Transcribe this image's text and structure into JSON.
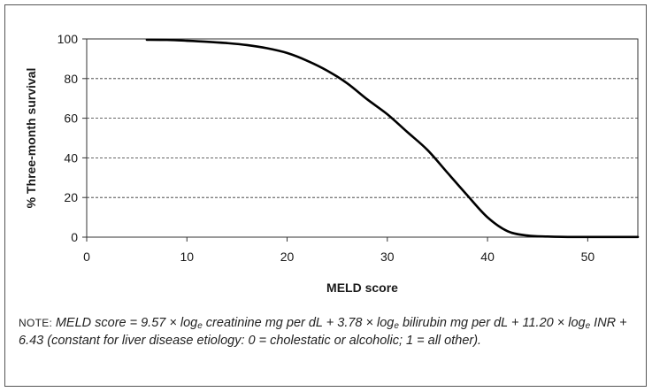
{
  "chart_data": {
    "type": "line",
    "title": "",
    "xlabel": "MELD score",
    "ylabel": "% Three-month survival",
    "xlim": [
      0,
      55
    ],
    "ylim": [
      0,
      100
    ],
    "xticks": [
      0,
      10,
      20,
      30,
      40,
      50
    ],
    "yticks": [
      0,
      20,
      40,
      60,
      80,
      100
    ],
    "grid": "horizontal dashed",
    "legend": "none",
    "line_color": "#000000",
    "series": [
      {
        "x": [
          6,
          8,
          10,
          12,
          14,
          16,
          18,
          20,
          22,
          24,
          26,
          28,
          30,
          32,
          34,
          36,
          38,
          40,
          42,
          44,
          46,
          48,
          50,
          52,
          55
        ],
        "values": [
          99.6,
          99.5,
          99.1,
          98.6,
          97.9,
          96.9,
          95.3,
          92.9,
          89.0,
          84.0,
          77.6,
          69.5,
          62.0,
          53.0,
          44.0,
          32.5,
          21.0,
          10.0,
          3.0,
          0.8,
          0.3,
          0.1,
          0.1,
          0.1,
          0.1
        ]
      }
    ]
  },
  "note": {
    "lead": "NOTE: ",
    "segments": [
      {
        "t": "MELD score = 9.57 × log"
      },
      {
        "sub": "e"
      },
      {
        "t": " creatinine mg per dL + 3.78 × log"
      },
      {
        "sub": "e"
      },
      {
        "t": " bilirubin mg per dL + 11.20 × log"
      },
      {
        "sub": "e"
      },
      {
        "t": " INR + 6.43 (constant for liver disease etiology: 0 = cholestatic or alcoholic; 1 = all other)."
      }
    ]
  }
}
